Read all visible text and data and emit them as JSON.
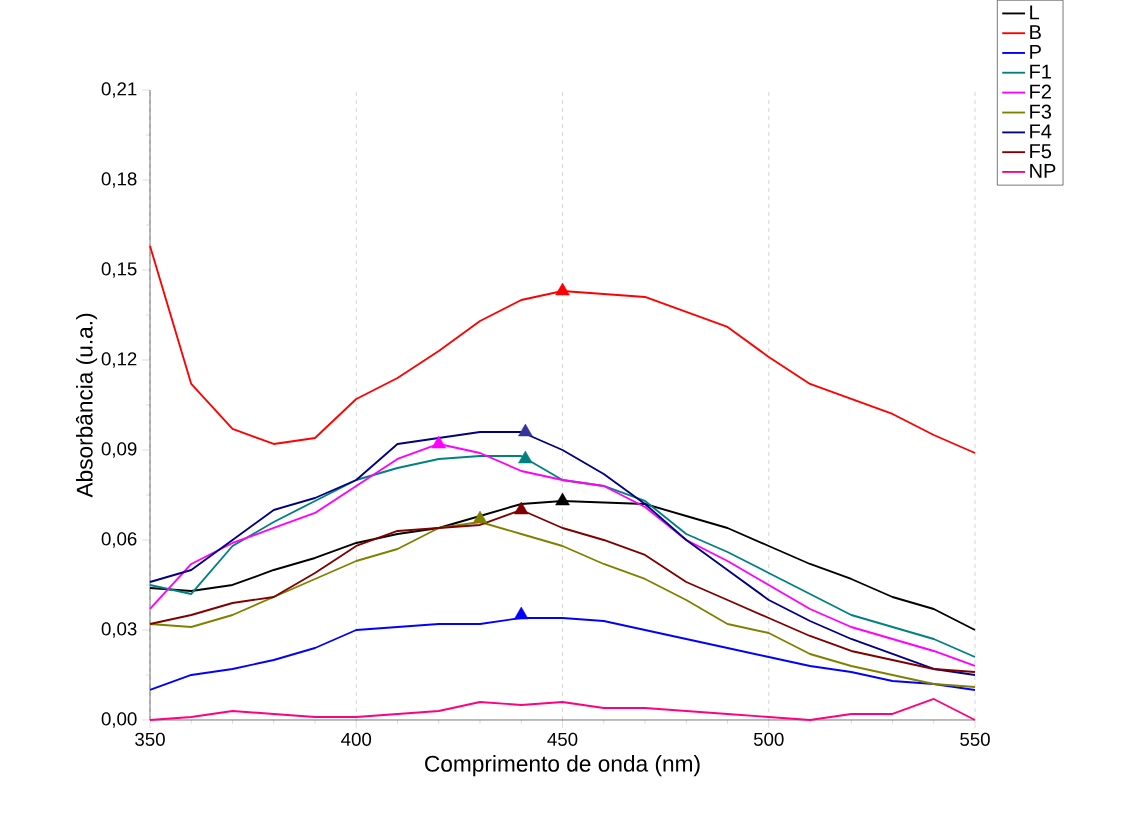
{
  "chart_data": {
    "type": "line",
    "xlabel": "Comprimento de onda (nm)",
    "ylabel": "Absorbância (u.a.)",
    "x": [
      350,
      360,
      370,
      380,
      390,
      400,
      410,
      420,
      430,
      440,
      450,
      460,
      470,
      480,
      490,
      500,
      510,
      520,
      530,
      540,
      550
    ],
    "xlim": [
      350,
      550
    ],
    "xticks": [
      350,
      400,
      450,
      500,
      550
    ],
    "ylim": [
      0,
      0.21
    ],
    "yticks": [
      {
        "value": 0,
        "label": "0,00"
      },
      {
        "value": 0.03,
        "label": "0,03"
      },
      {
        "value": 0.06,
        "label": "0,06"
      },
      {
        "value": 0.09,
        "label": "0,09"
      },
      {
        "value": 0.12,
        "label": "0,12"
      },
      {
        "value": 0.15,
        "label": "0,15"
      },
      {
        "value": 0.18,
        "label": "0,18"
      },
      {
        "value": 0.21,
        "label": "0,21"
      }
    ],
    "grid": "x",
    "legend": "top right",
    "marker": "none",
    "series": [
      {
        "name": "L",
        "color": "#000000",
        "values": [
          0.044,
          0.043,
          0.045,
          0.05,
          0.054,
          0.059,
          0.062,
          0.064,
          0.068,
          0.072,
          0.073,
          0.0725,
          0.072,
          0.068,
          0.064,
          0.058,
          0.052,
          0.047,
          0.041,
          0.037,
          0.03
        ]
      },
      {
        "name": "B",
        "color": "#ff0000",
        "values": [
          0.158,
          0.112,
          0.097,
          0.092,
          0.094,
          0.107,
          0.114,
          0.123,
          0.133,
          0.14,
          0.143,
          0.142,
          0.141,
          0.136,
          0.131,
          0.121,
          0.112,
          0.107,
          0.102,
          0.095,
          0.089
        ]
      },
      {
        "name": "P",
        "color": "#0000ff",
        "values": [
          0.01,
          0.015,
          0.017,
          0.02,
          0.024,
          0.03,
          0.031,
          0.032,
          0.032,
          0.034,
          0.034,
          0.033,
          0.03,
          0.027,
          0.024,
          0.021,
          0.018,
          0.016,
          0.013,
          0.012,
          0.01
        ]
      },
      {
        "name": "F1",
        "color": "#008080",
        "values": [
          0.045,
          0.042,
          0.058,
          0.066,
          0.073,
          0.08,
          0.084,
          0.087,
          0.088,
          0.088,
          0.08,
          0.078,
          0.073,
          0.062,
          0.056,
          0.049,
          0.042,
          0.035,
          0.031,
          0.027,
          0.021
        ]
      },
      {
        "name": "F2",
        "color": "#ff00ff",
        "values": [
          0.037,
          0.052,
          0.059,
          0.064,
          0.069,
          0.078,
          0.087,
          0.092,
          0.089,
          0.083,
          0.08,
          0.078,
          0.071,
          0.06,
          0.053,
          0.045,
          0.037,
          0.031,
          0.027,
          0.023,
          0.018
        ]
      },
      {
        "name": "F3",
        "color": "#808000",
        "values": [
          0.032,
          0.031,
          0.035,
          0.041,
          0.047,
          0.053,
          0.057,
          0.064,
          0.066,
          0.062,
          0.058,
          0.052,
          0.047,
          0.04,
          0.032,
          0.029,
          0.022,
          0.018,
          0.015,
          0.012,
          0.011
        ]
      },
      {
        "name": "F4",
        "color": "#000080",
        "values": [
          0.046,
          0.05,
          0.06,
          0.07,
          0.074,
          0.08,
          0.092,
          0.094,
          0.096,
          0.096,
          0.09,
          0.082,
          0.072,
          0.06,
          0.05,
          0.04,
          0.033,
          0.027,
          0.022,
          0.017,
          0.015
        ]
      },
      {
        "name": "F5",
        "color": "#800000",
        "values": [
          0.032,
          0.035,
          0.039,
          0.041,
          0.049,
          0.058,
          0.063,
          0.064,
          0.065,
          0.07,
          0.064,
          0.06,
          0.055,
          0.046,
          0.04,
          0.034,
          0.028,
          0.023,
          0.02,
          0.017,
          0.016
        ]
      },
      {
        "name": "NP",
        "color": "#ff0080",
        "values": [
          0,
          0.001,
          0.003,
          0.002,
          0.001,
          0.001,
          0.002,
          0.003,
          0.006,
          0.005,
          0.006,
          0.004,
          0.004,
          0.003,
          0.002,
          0.001,
          0,
          0.002,
          0.002,
          0.007,
          0
        ]
      },
      {
        "type": "scatter",
        "marker": "triangle",
        "x": [
          450,
          450,
          440,
          441,
          420,
          430,
          441,
          440
        ],
        "values": [
          0.073,
          0.143,
          0.035,
          0.087,
          0.092,
          0.067,
          0.096,
          0.07
        ],
        "colors": [
          "#000000",
          "#ff0000",
          "#0000ff",
          "#008080",
          "#ff00ff",
          "#808000",
          "#333399",
          "#800000"
        ]
      }
    ]
  }
}
